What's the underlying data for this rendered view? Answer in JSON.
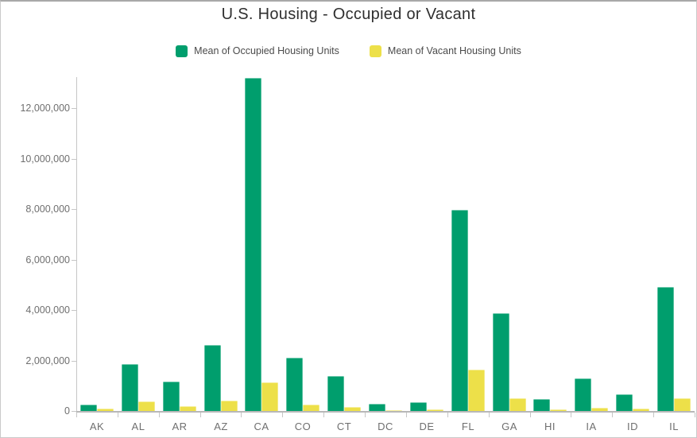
{
  "title": "U.S. Housing - Occupied or Vacant",
  "colors": {
    "occupied": "#009e6d",
    "vacant": "#ede049",
    "title_text": "#2f2f2f",
    "legend_text": "#4b4b4b",
    "axis_text": "#6f6f6f",
    "axis_line": "#c6c6c6"
  },
  "chart_data": {
    "type": "bar",
    "title": "U.S. Housing - Occupied or Vacant",
    "xlabel": "",
    "ylabel": "",
    "grid": false,
    "legend_position": "top",
    "categories": [
      "AK",
      "AL",
      "AR",
      "AZ",
      "CA",
      "CO",
      "CT",
      "DC",
      "DE",
      "FL",
      "GA",
      "HI",
      "IA",
      "ID",
      "IL"
    ],
    "series": [
      {
        "key": "occupied",
        "name": "Mean of Occupied Housing Units",
        "color": "#009e6d",
        "values": [
          250000,
          1870000,
          1160000,
          2620000,
          13200000,
          2120000,
          1390000,
          290000,
          360000,
          7970000,
          3860000,
          480000,
          1300000,
          650000,
          4930000
        ]
      },
      {
        "key": "vacant",
        "name": "Mean of Vacant Housing Units",
        "color": "#ede049",
        "values": [
          90000,
          380000,
          200000,
          420000,
          1120000,
          250000,
          160000,
          35000,
          70000,
          1630000,
          520000,
          80000,
          140000,
          90000,
          510000
        ]
      }
    ],
    "ylim": [
      0,
      13300000
    ],
    "yticks": [
      {
        "value": 0,
        "label": "0"
      },
      {
        "value": 2000000,
        "label": "2,000,000"
      },
      {
        "value": 4000000,
        "label": "4,000,000"
      },
      {
        "value": 6000000,
        "label": "6,000,000"
      },
      {
        "value": 8000000,
        "label": "8,000,000"
      },
      {
        "value": 10000000,
        "label": "10,000,000"
      },
      {
        "value": 12000000,
        "label": "12,000,000"
      }
    ]
  }
}
